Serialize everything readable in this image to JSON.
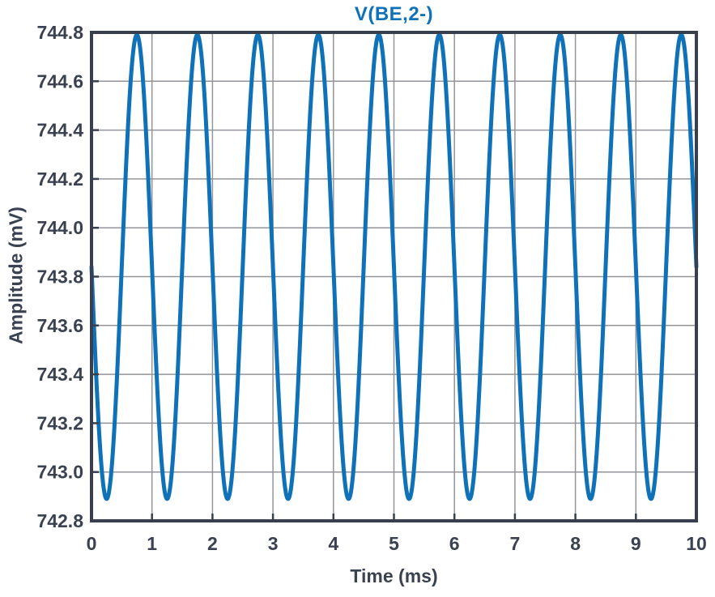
{
  "chart_data": {
    "type": "line",
    "title": "V(BE,2-)",
    "xlabel": "Time (ms)",
    "ylabel": "Amplitude (mV)",
    "xlim": [
      0,
      10
    ],
    "ylim": [
      742.8,
      744.8
    ],
    "xticks": [
      0,
      1,
      2,
      3,
      4,
      5,
      6,
      7,
      8,
      9,
      10
    ],
    "yticks": [
      742.8,
      743.0,
      743.2,
      743.4,
      743.6,
      743.8,
      744.0,
      744.2,
      744.4,
      744.6,
      744.8
    ],
    "grid": true,
    "legend": "none",
    "series": [
      {
        "name": "V(BE,2-)",
        "waveform": "sine",
        "mean_mv": 743.84,
        "amplitude_mv": 0.95,
        "period_ms": 1.0,
        "phase_rad": 3.14159265358979,
        "phase_note": "starts at mean value descending at t=0 (inverted sine)",
        "x_range_ms": [
          0,
          10
        ],
        "max_mv": 744.79,
        "min_mv": 742.89,
        "cycles_shown": 10
      }
    ],
    "colors": {
      "line": "#0f72b8",
      "title": "#0f72b8",
      "axis_frame": "#383f4e",
      "grid": "#94949b",
      "tick_label": "#3a4150",
      "background": "#ffffff"
    }
  }
}
